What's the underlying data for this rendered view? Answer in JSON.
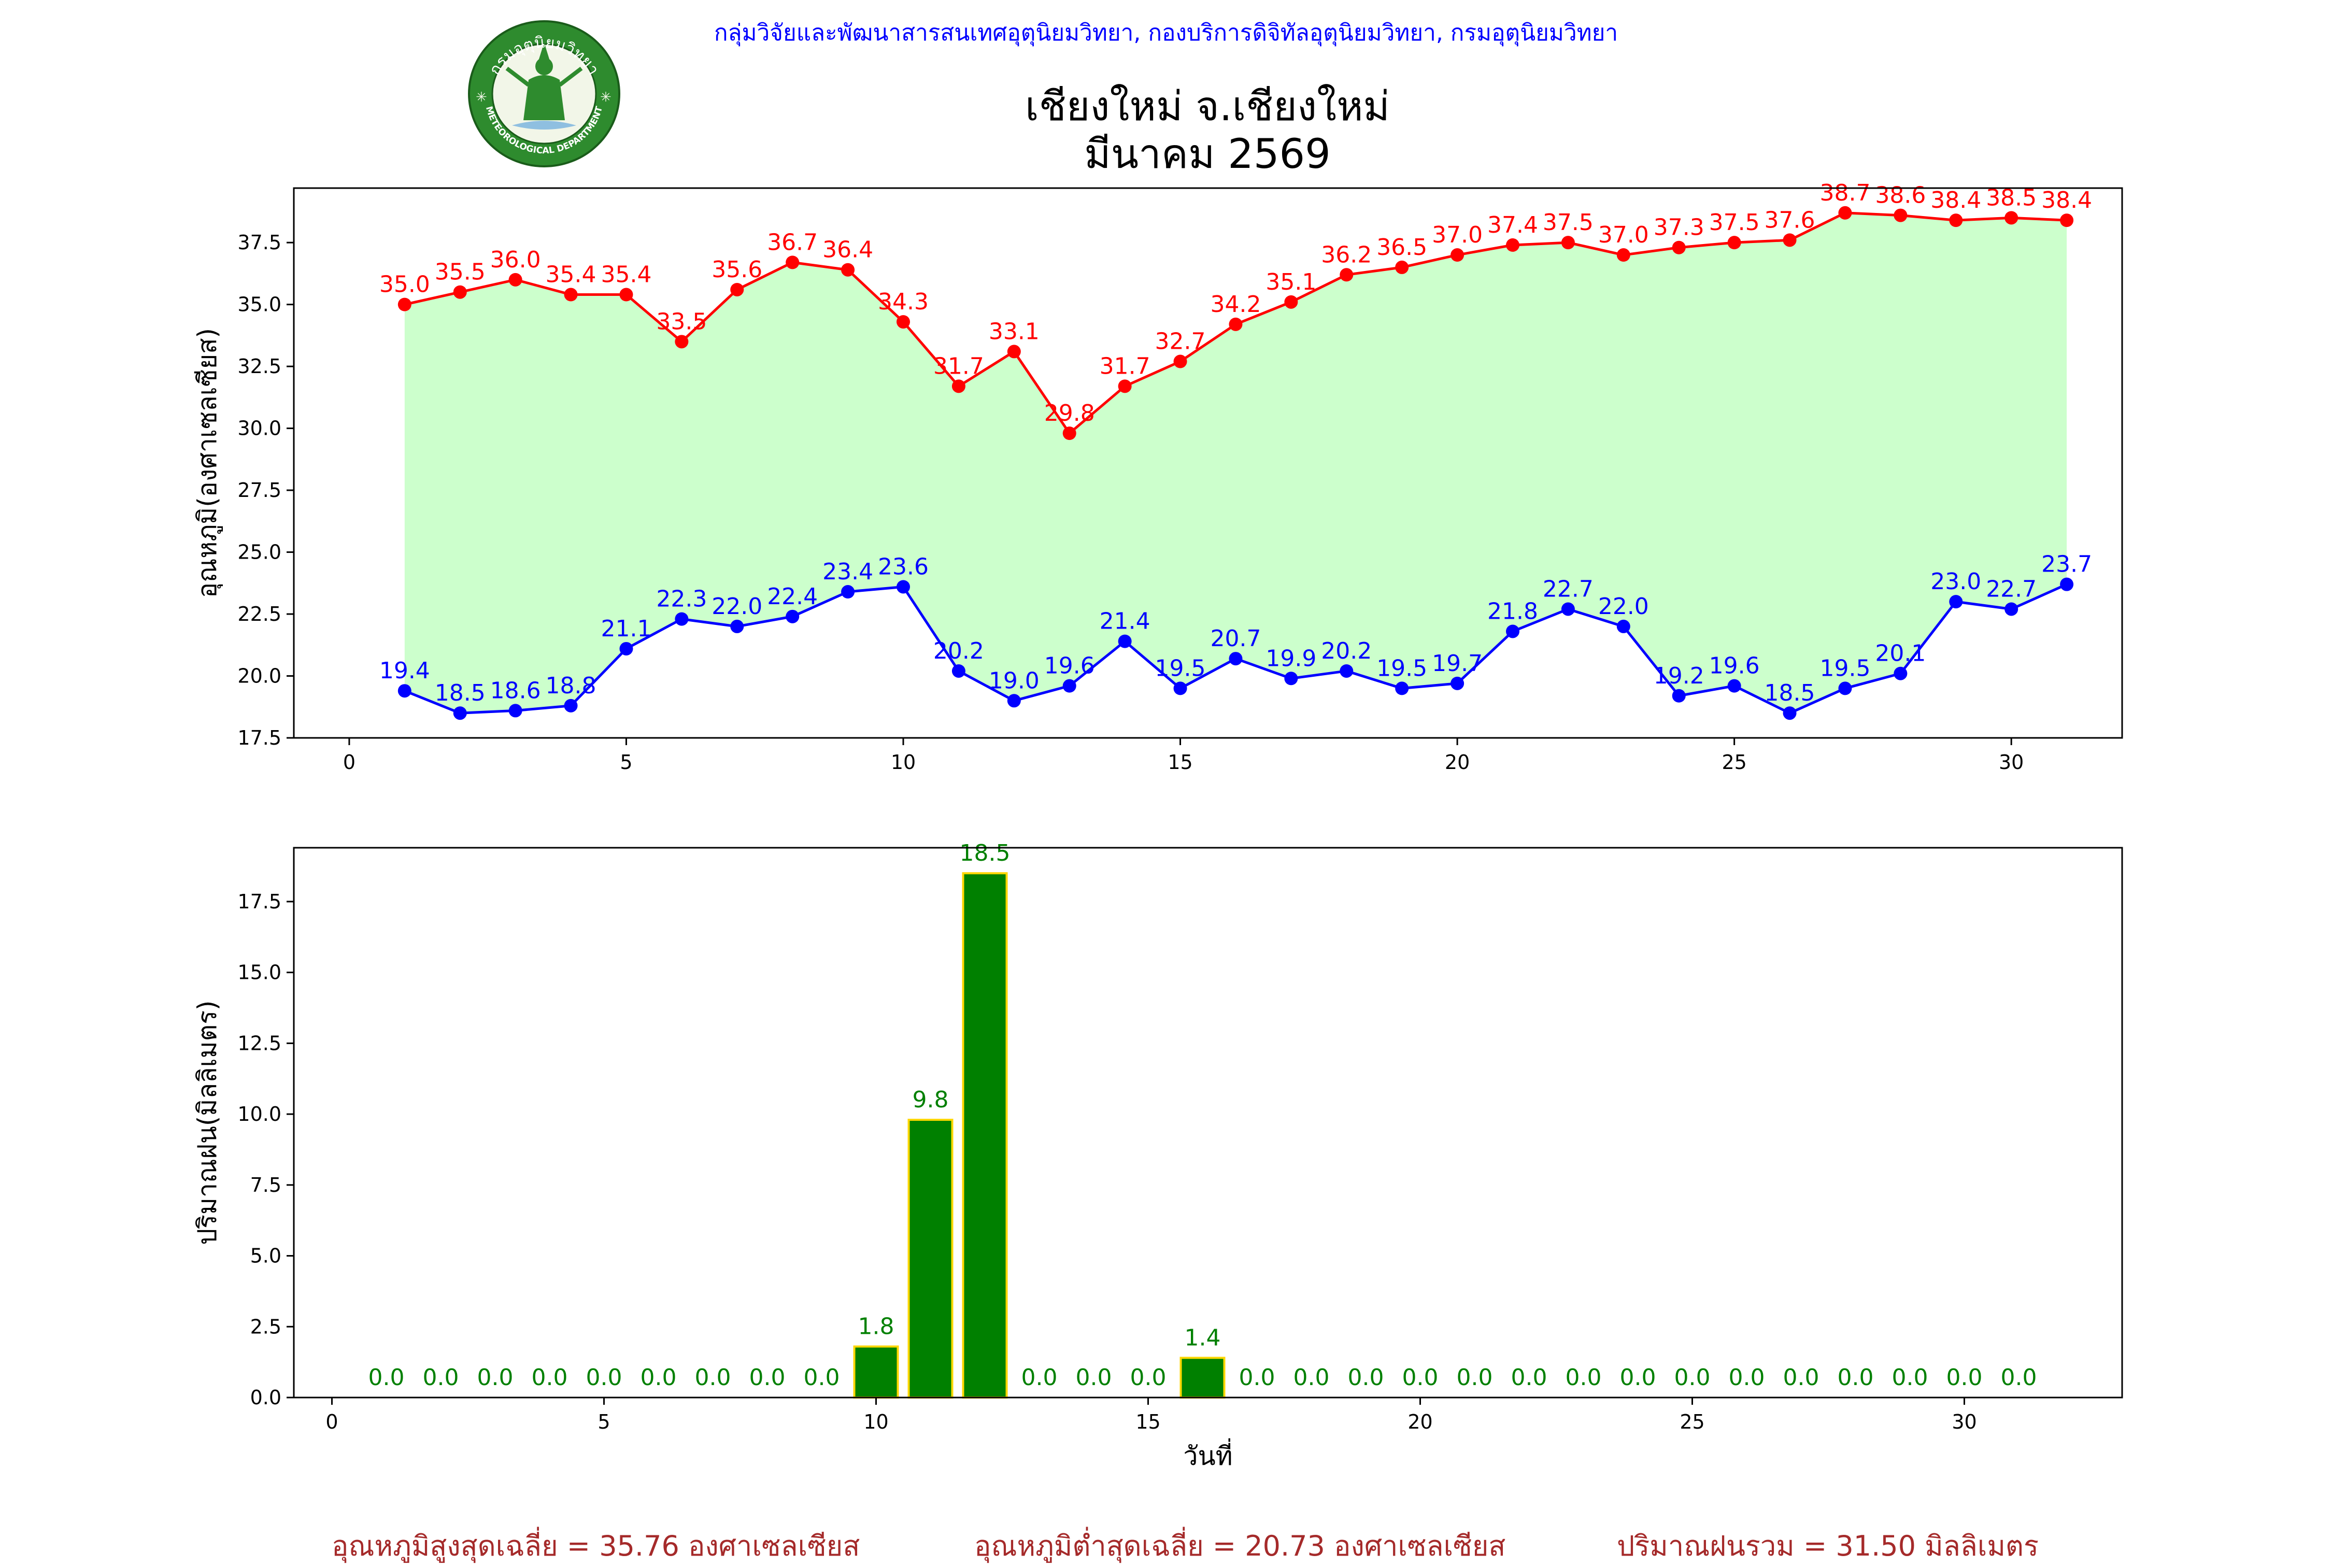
{
  "header": {
    "credit": "กลุ่มวิจัยและพัฒนาสารสนเทศอุตุนิยมวิทยา, กองบริการดิจิทัลอุตุนิยมวิทยา, กรมอุตุนิยมวิทยา",
    "title_line1": "เชียงใหม่ จ.เชียงใหม่",
    "title_line2": "มีนาคม 2569"
  },
  "logo": {
    "top_text": "กรมอุตุนิยมวิทยา",
    "bottom_text": "METEOROLOGICAL DEPARTMENT"
  },
  "colors": {
    "max": "#ff0000",
    "min": "#0000ff",
    "fill": "#ccffcc",
    "rain": "#008000",
    "rain_edge": "#ffd700",
    "summary": "#a52a2a"
  },
  "chart_data": [
    {
      "type": "line",
      "ylabel": "อุณหภูมิ(องศาเซลเซียส)",
      "xlabel": "",
      "x": [
        1,
        2,
        3,
        4,
        5,
        6,
        7,
        8,
        9,
        10,
        11,
        12,
        13,
        14,
        15,
        16,
        17,
        18,
        19,
        20,
        21,
        22,
        23,
        24,
        25,
        26,
        27,
        28,
        29,
        30,
        31
      ],
      "xlim": [
        -1,
        32
      ],
      "ylim": [
        17.5,
        39.7
      ],
      "xticks": [
        "0",
        "5",
        "10",
        "15",
        "20",
        "25",
        "30"
      ],
      "yticks": [
        "17.5",
        "20.0",
        "22.5",
        "25.0",
        "27.5",
        "30.0",
        "32.5",
        "35.0",
        "37.5"
      ],
      "grid": false,
      "series": [
        {
          "values": [
            35.0,
            35.5,
            36.0,
            35.4,
            35.4,
            33.5,
            35.6,
            36.7,
            36.4,
            34.3,
            31.7,
            33.1,
            29.8,
            31.7,
            32.7,
            34.2,
            35.1,
            36.2,
            36.5,
            37.0,
            37.4,
            37.5,
            37.0,
            37.3,
            37.5,
            37.6,
            38.7,
            38.6,
            38.4,
            38.5,
            38.4
          ]
        },
        {
          "values": [
            19.4,
            18.5,
            18.6,
            18.8,
            21.1,
            22.3,
            22.0,
            22.4,
            23.4,
            23.6,
            20.2,
            19.0,
            19.6,
            21.4,
            19.5,
            20.7,
            19.9,
            20.2,
            19.5,
            19.7,
            21.8,
            22.7,
            22.0,
            19.2,
            19.6,
            18.5,
            19.5,
            20.1,
            23.0,
            22.7,
            23.7
          ]
        }
      ]
    },
    {
      "type": "bar",
      "ylabel": "ปริมาณฝน(มิลลิเมตร)",
      "xlabel": "วันที่",
      "x": [
        1,
        2,
        3,
        4,
        5,
        6,
        7,
        8,
        9,
        10,
        11,
        12,
        13,
        14,
        15,
        16,
        17,
        18,
        19,
        20,
        21,
        22,
        23,
        24,
        25,
        26,
        27,
        28,
        29,
        30,
        31
      ],
      "values": [
        0.0,
        0.0,
        0.0,
        0.0,
        0.0,
        0.0,
        0.0,
        0.0,
        0.0,
        1.8,
        9.8,
        18.5,
        0.0,
        0.0,
        0.0,
        1.4,
        0.0,
        0.0,
        0.0,
        0.0,
        0.0,
        0.0,
        0.0,
        0.0,
        0.0,
        0.0,
        0.0,
        0.0,
        0.0,
        0.0,
        0.0
      ],
      "xlim": [
        -0.7,
        32.9
      ],
      "ylim": [
        0,
        19.4
      ],
      "xticks": [
        "0",
        "5",
        "10",
        "15",
        "20",
        "25",
        "30"
      ],
      "yticks": [
        "0.0",
        "2.5",
        "5.0",
        "7.5",
        "10.0",
        "12.5",
        "15.0",
        "17.5"
      ],
      "grid": false
    }
  ],
  "summary": {
    "avg_max": "อุณหภูมิสูงสุดเฉลี่ย = 35.76 องศาเซลเซียส",
    "avg_min": "อุณหภูมิต่ำสุดเฉลี่ย = 20.73 องศาเซลเซียส",
    "total_rain": "ปริมาณฝนรวม = 31.50 มิลลิเมตร"
  }
}
